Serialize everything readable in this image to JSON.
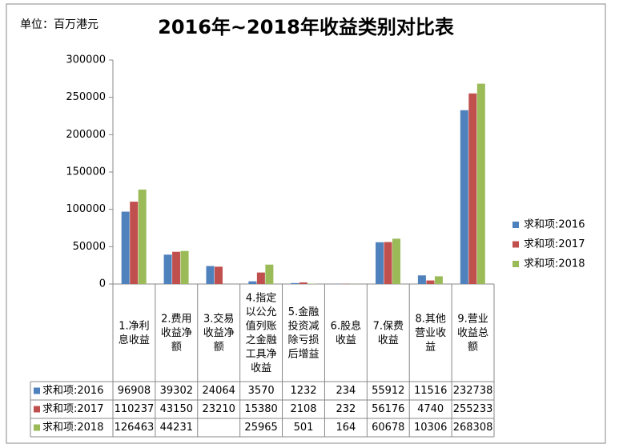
{
  "chart_data": {
    "type": "bar",
    "title": "2016年~2018年收益类别对比表",
    "unit_note": "单位：百万港元",
    "categories": [
      "1.净利息收益",
      "2.费用收益净额",
      "3.交易收益净额",
      "4.指定以公允值列账之金融工具净收益",
      "5.金融投资减除亏损后增益",
      "6.股息收益",
      "7.保费收益",
      "8.其他营业收益",
      "9.营业收益总额"
    ],
    "series": [
      {
        "name": "求和项:2016",
        "color": "#4f81bd",
        "values": [
          96908,
          39302,
          24064,
          3570,
          1232,
          234,
          55912,
          11516,
          232738
        ]
      },
      {
        "name": "求和项:2017",
        "color": "#c0504d",
        "values": [
          110237,
          43150,
          23210,
          15380,
          2108,
          232,
          56176,
          4740,
          255233
        ]
      },
      {
        "name": "求和项:2018",
        "color": "#9bbb59",
        "values": [
          126463,
          44231,
          null,
          25965,
          501,
          164,
          60678,
          10306,
          268308
        ]
      }
    ],
    "ylim": [
      0,
      300000
    ],
    "yticks": [
      0,
      50000,
      100000,
      150000,
      200000,
      250000,
      300000
    ],
    "legend": "right",
    "data_table": true
  }
}
